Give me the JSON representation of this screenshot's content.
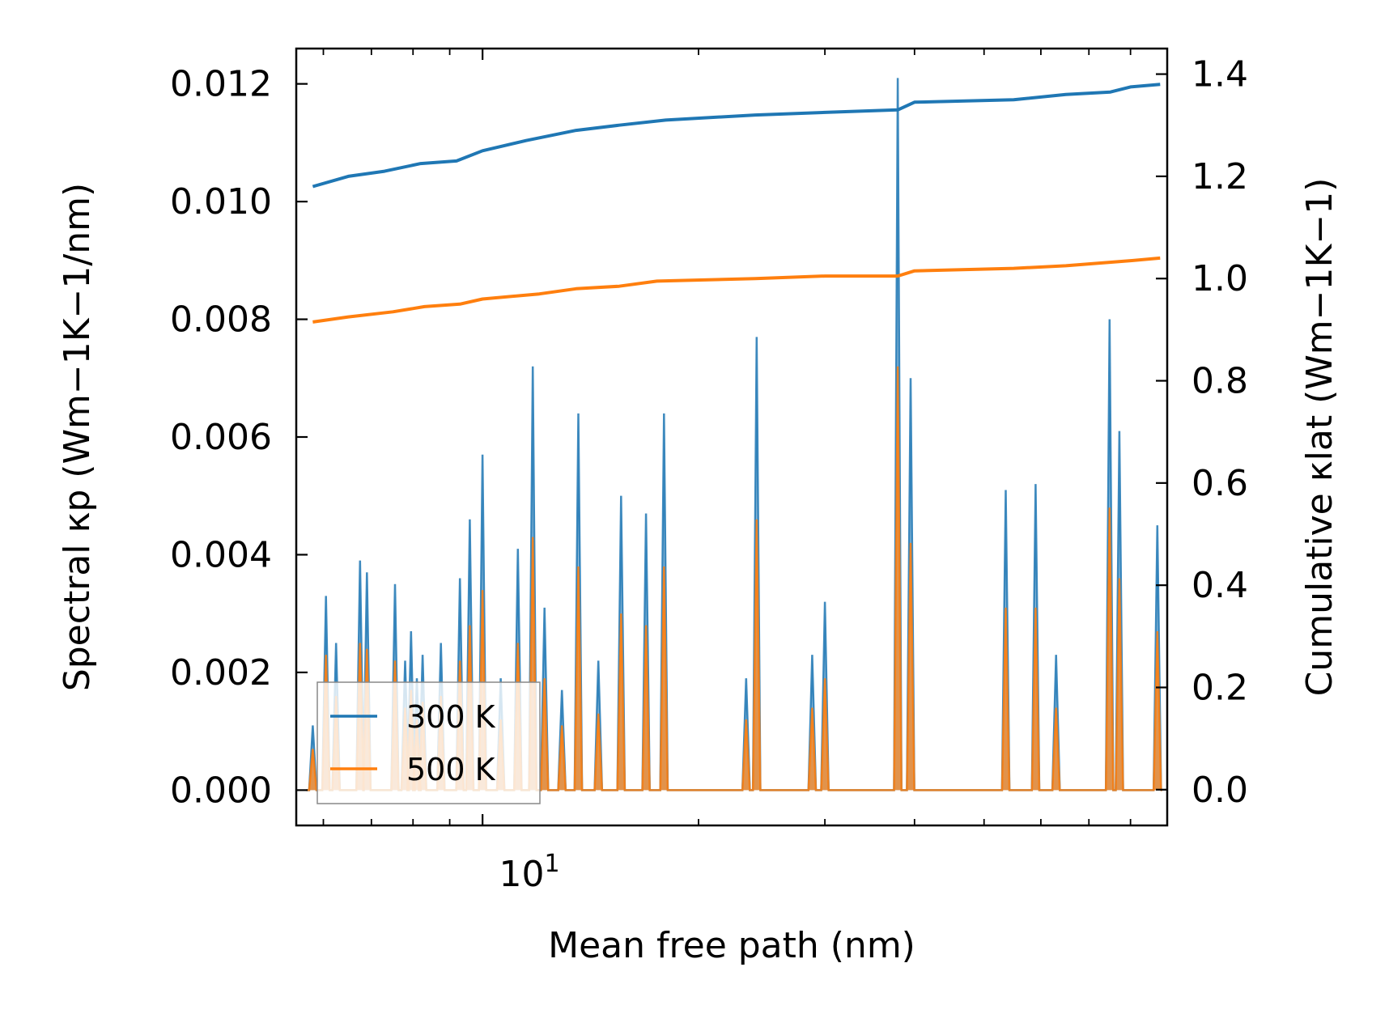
{
  "chart_data": {
    "type": "line",
    "title": "",
    "xlabel": "Mean free path (nm)",
    "ylabel_left": "Spectral κp (Wm−1K−1/nm)",
    "ylabel_right": "Cumulative κlat (Wm−1K−1)",
    "xscale": "log",
    "xlim": [
      5.5,
      90
    ],
    "ylim_left": [
      -0.0006,
      0.0126
    ],
    "ylim_right": [
      -0.07,
      1.45
    ],
    "x_tick_label": "10^1",
    "x_tick_base": "10",
    "x_tick_exp": "1",
    "left_ticks": [
      {
        "value": 0.0,
        "label": "0.000"
      },
      {
        "value": 0.002,
        "label": "0.002"
      },
      {
        "value": 0.004,
        "label": "0.004"
      },
      {
        "value": 0.006,
        "label": "0.006"
      },
      {
        "value": 0.008,
        "label": "0.008"
      },
      {
        "value": 0.01,
        "label": "0.010"
      },
      {
        "value": 0.012,
        "label": "0.012"
      }
    ],
    "right_ticks": [
      {
        "value": 0.0,
        "label": "0.0"
      },
      {
        "value": 0.2,
        "label": "0.2"
      },
      {
        "value": 0.4,
        "label": "0.4"
      },
      {
        "value": 0.6,
        "label": "0.6"
      },
      {
        "value": 0.8,
        "label": "0.8"
      },
      {
        "value": 1.0,
        "label": "1.0"
      },
      {
        "value": 1.2,
        "label": "1.2"
      },
      {
        "value": 1.4,
        "label": "1.4"
      }
    ],
    "legend": {
      "position": "lower-left",
      "entries": [
        "300 K",
        "500 K"
      ]
    },
    "series": [
      {
        "name": "300 K",
        "color": "#1f77b4",
        "spectral_peaks": [
          {
            "x": 5.8,
            "y": 0.0011
          },
          {
            "x": 6.05,
            "y": 0.0033
          },
          {
            "x": 6.25,
            "y": 0.0025
          },
          {
            "x": 6.75,
            "y": 0.0039
          },
          {
            "x": 6.9,
            "y": 0.0037
          },
          {
            "x": 7.55,
            "y": 0.0035
          },
          {
            "x": 7.8,
            "y": 0.0022
          },
          {
            "x": 7.95,
            "y": 0.0027
          },
          {
            "x": 8.1,
            "y": 0.0019
          },
          {
            "x": 8.25,
            "y": 0.0023
          },
          {
            "x": 8.75,
            "y": 0.0025
          },
          {
            "x": 9.3,
            "y": 0.0036
          },
          {
            "x": 9.6,
            "y": 0.0046
          },
          {
            "x": 10.0,
            "y": 0.0057
          },
          {
            "x": 10.6,
            "y": 0.0019
          },
          {
            "x": 11.2,
            "y": 0.0041
          },
          {
            "x": 11.75,
            "y": 0.0072
          },
          {
            "x": 12.2,
            "y": 0.0031
          },
          {
            "x": 12.9,
            "y": 0.0017
          },
          {
            "x": 13.6,
            "y": 0.0064
          },
          {
            "x": 14.5,
            "y": 0.0022
          },
          {
            "x": 15.6,
            "y": 0.005
          },
          {
            "x": 16.9,
            "y": 0.0047
          },
          {
            "x": 17.9,
            "y": 0.0064
          },
          {
            "x": 23.3,
            "y": 0.0019
          },
          {
            "x": 24.1,
            "y": 0.0077
          },
          {
            "x": 28.8,
            "y": 0.0023
          },
          {
            "x": 30.0,
            "y": 0.0032
          },
          {
            "x": 37.9,
            "y": 0.0121
          },
          {
            "x": 39.5,
            "y": 0.007
          },
          {
            "x": 53.6,
            "y": 0.0051
          },
          {
            "x": 59.0,
            "y": 0.0052
          },
          {
            "x": 63.0,
            "y": 0.0023
          },
          {
            "x": 74.8,
            "y": 0.008
          },
          {
            "x": 77.2,
            "y": 0.0061
          },
          {
            "x": 87.2,
            "y": 0.0045
          }
        ],
        "cumulative": [
          {
            "x": 5.8,
            "y": 1.18
          },
          {
            "x": 6.5,
            "y": 1.2
          },
          {
            "x": 7.3,
            "y": 1.21
          },
          {
            "x": 8.2,
            "y": 1.225
          },
          {
            "x": 9.2,
            "y": 1.23
          },
          {
            "x": 10.0,
            "y": 1.25
          },
          {
            "x": 11.5,
            "y": 1.27
          },
          {
            "x": 13.5,
            "y": 1.29
          },
          {
            "x": 15.5,
            "y": 1.3
          },
          {
            "x": 18.0,
            "y": 1.31
          },
          {
            "x": 24.0,
            "y": 1.32
          },
          {
            "x": 30.0,
            "y": 1.325
          },
          {
            "x": 37.9,
            "y": 1.33
          },
          {
            "x": 40.0,
            "y": 1.345
          },
          {
            "x": 55.0,
            "y": 1.35
          },
          {
            "x": 65.0,
            "y": 1.36
          },
          {
            "x": 75.0,
            "y": 1.365
          },
          {
            "x": 80.0,
            "y": 1.375
          },
          {
            "x": 88.0,
            "y": 1.38
          }
        ]
      },
      {
        "name": "500 K",
        "color": "#ff7f0e",
        "spectral_peaks": [
          {
            "x": 5.8,
            "y": 0.0007
          },
          {
            "x": 6.05,
            "y": 0.0023
          },
          {
            "x": 6.25,
            "y": 0.0016
          },
          {
            "x": 6.75,
            "y": 0.0025
          },
          {
            "x": 6.9,
            "y": 0.0024
          },
          {
            "x": 7.55,
            "y": 0.0022
          },
          {
            "x": 7.8,
            "y": 0.0014
          },
          {
            "x": 7.95,
            "y": 0.0017
          },
          {
            "x": 8.1,
            "y": 0.0012
          },
          {
            "x": 8.25,
            "y": 0.0015
          },
          {
            "x": 8.75,
            "y": 0.0016
          },
          {
            "x": 9.3,
            "y": 0.0022
          },
          {
            "x": 9.6,
            "y": 0.0028
          },
          {
            "x": 10.0,
            "y": 0.0034
          },
          {
            "x": 10.6,
            "y": 0.0012
          },
          {
            "x": 11.2,
            "y": 0.0025
          },
          {
            "x": 11.75,
            "y": 0.0043
          },
          {
            "x": 12.2,
            "y": 0.0019
          },
          {
            "x": 12.9,
            "y": 0.0011
          },
          {
            "x": 13.6,
            "y": 0.0038
          },
          {
            "x": 14.5,
            "y": 0.0013
          },
          {
            "x": 15.6,
            "y": 0.003
          },
          {
            "x": 16.9,
            "y": 0.0028
          },
          {
            "x": 17.9,
            "y": 0.0038
          },
          {
            "x": 23.3,
            "y": 0.0012
          },
          {
            "x": 24.1,
            "y": 0.0046
          },
          {
            "x": 28.8,
            "y": 0.0014
          },
          {
            "x": 30.0,
            "y": 0.0019
          },
          {
            "x": 37.9,
            "y": 0.0072
          },
          {
            "x": 39.5,
            "y": 0.0042
          },
          {
            "x": 53.6,
            "y": 0.0031
          },
          {
            "x": 59.0,
            "y": 0.0031
          },
          {
            "x": 63.0,
            "y": 0.0014
          },
          {
            "x": 74.8,
            "y": 0.0048
          },
          {
            "x": 77.2,
            "y": 0.0036
          },
          {
            "x": 87.2,
            "y": 0.0027
          }
        ],
        "cumulative": [
          {
            "x": 5.8,
            "y": 0.915
          },
          {
            "x": 6.5,
            "y": 0.925
          },
          {
            "x": 7.5,
            "y": 0.935
          },
          {
            "x": 8.3,
            "y": 0.945
          },
          {
            "x": 9.3,
            "y": 0.95
          },
          {
            "x": 10.0,
            "y": 0.96
          },
          {
            "x": 12.0,
            "y": 0.97
          },
          {
            "x": 13.5,
            "y": 0.98
          },
          {
            "x": 15.5,
            "y": 0.985
          },
          {
            "x": 17.5,
            "y": 0.995
          },
          {
            "x": 24.0,
            "y": 1.0
          },
          {
            "x": 30.0,
            "y": 1.005
          },
          {
            "x": 37.9,
            "y": 1.005
          },
          {
            "x": 40.0,
            "y": 1.015
          },
          {
            "x": 55.0,
            "y": 1.02
          },
          {
            "x": 65.0,
            "y": 1.025
          },
          {
            "x": 80.0,
            "y": 1.035
          },
          {
            "x": 88.0,
            "y": 1.04
          }
        ]
      }
    ]
  }
}
